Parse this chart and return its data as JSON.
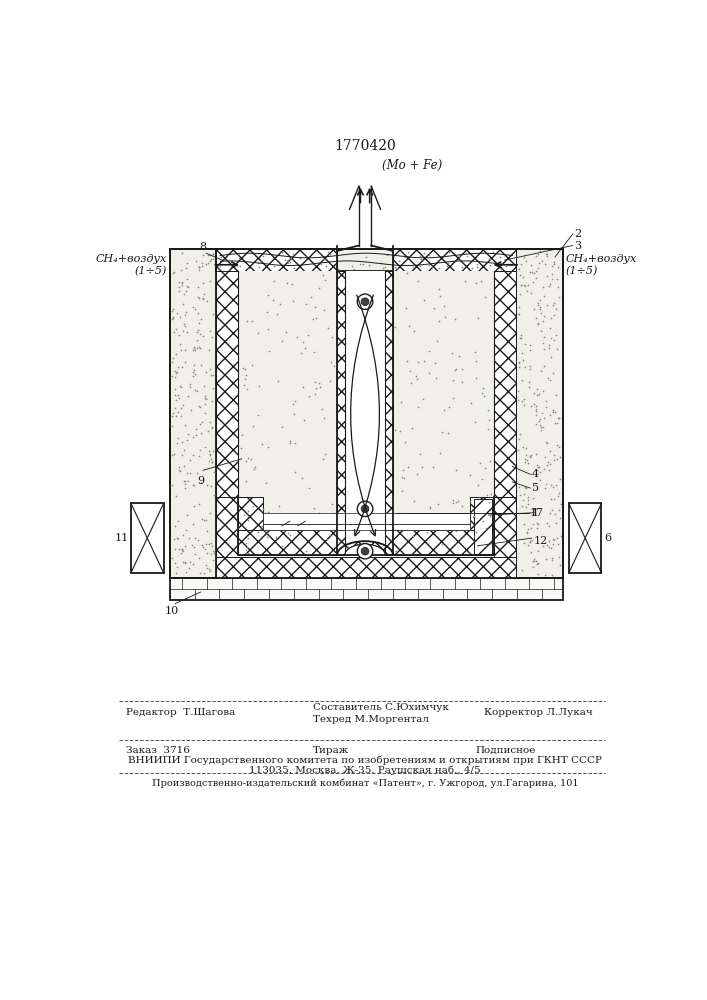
{
  "patent_number": "1770420",
  "bg_color": "#ffffff",
  "line_color": "#1a1a1a",
  "label_top": "(Mo + Fe)",
  "label_left_1": "CH₄+воздух",
  "label_left_2": "(1÷5)",
  "label_right_1": "CH₄+воздух",
  "label_right_2": "(1÷5)",
  "footer_editor": "Редактор  Т.Шагова",
  "footer_sostavitel": "Составитель С.Юхимчук",
  "footer_techred": "Техред М.Моргентал",
  "footer_corrector": "Корректор Л.Лукач",
  "footer_order": "Заказ  3716",
  "footer_tirazh": "Тираж",
  "footer_podpisnoe": "Подписное",
  "footer_vniipі": "ВНИИПИ Государственного комитета по изобретениям и открытиям при ГКНТ СССР",
  "footer_address": "113035, Москва, Ж-35, Раушская наб., 4/5",
  "footer_publisher": "Производственно-издательский комбинат «Патент», г. Ужгород, ул.Гагарина, 101"
}
